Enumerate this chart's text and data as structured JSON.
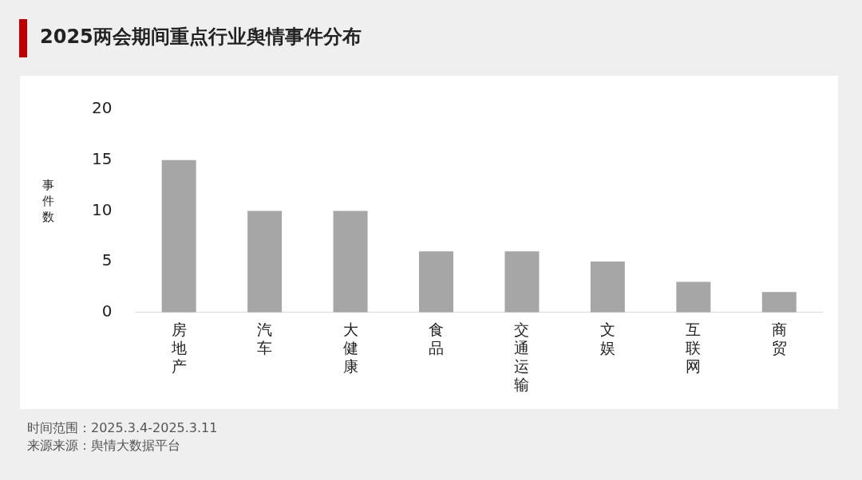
{
  "chart_data": {
    "type": "bar",
    "title": "2025两会期间重点行业舆情事件分布",
    "ylabel": "事件数",
    "categories": [
      "房地产",
      "汽车",
      "大健康",
      "食品",
      "交通运输",
      "文娱",
      "互联网",
      "商贸"
    ],
    "values": [
      15,
      10,
      10,
      6,
      6,
      5,
      3,
      2
    ],
    "color": "#a6a6a6",
    "ylim": [
      0,
      20
    ],
    "yticks": [
      0,
      5,
      10,
      15,
      20
    ],
    "grid": false,
    "legend": false,
    "annotations": [
      "时间范围：2025.3.4-2025.3.11",
      "来源来源：舆情大数据平台"
    ]
  }
}
